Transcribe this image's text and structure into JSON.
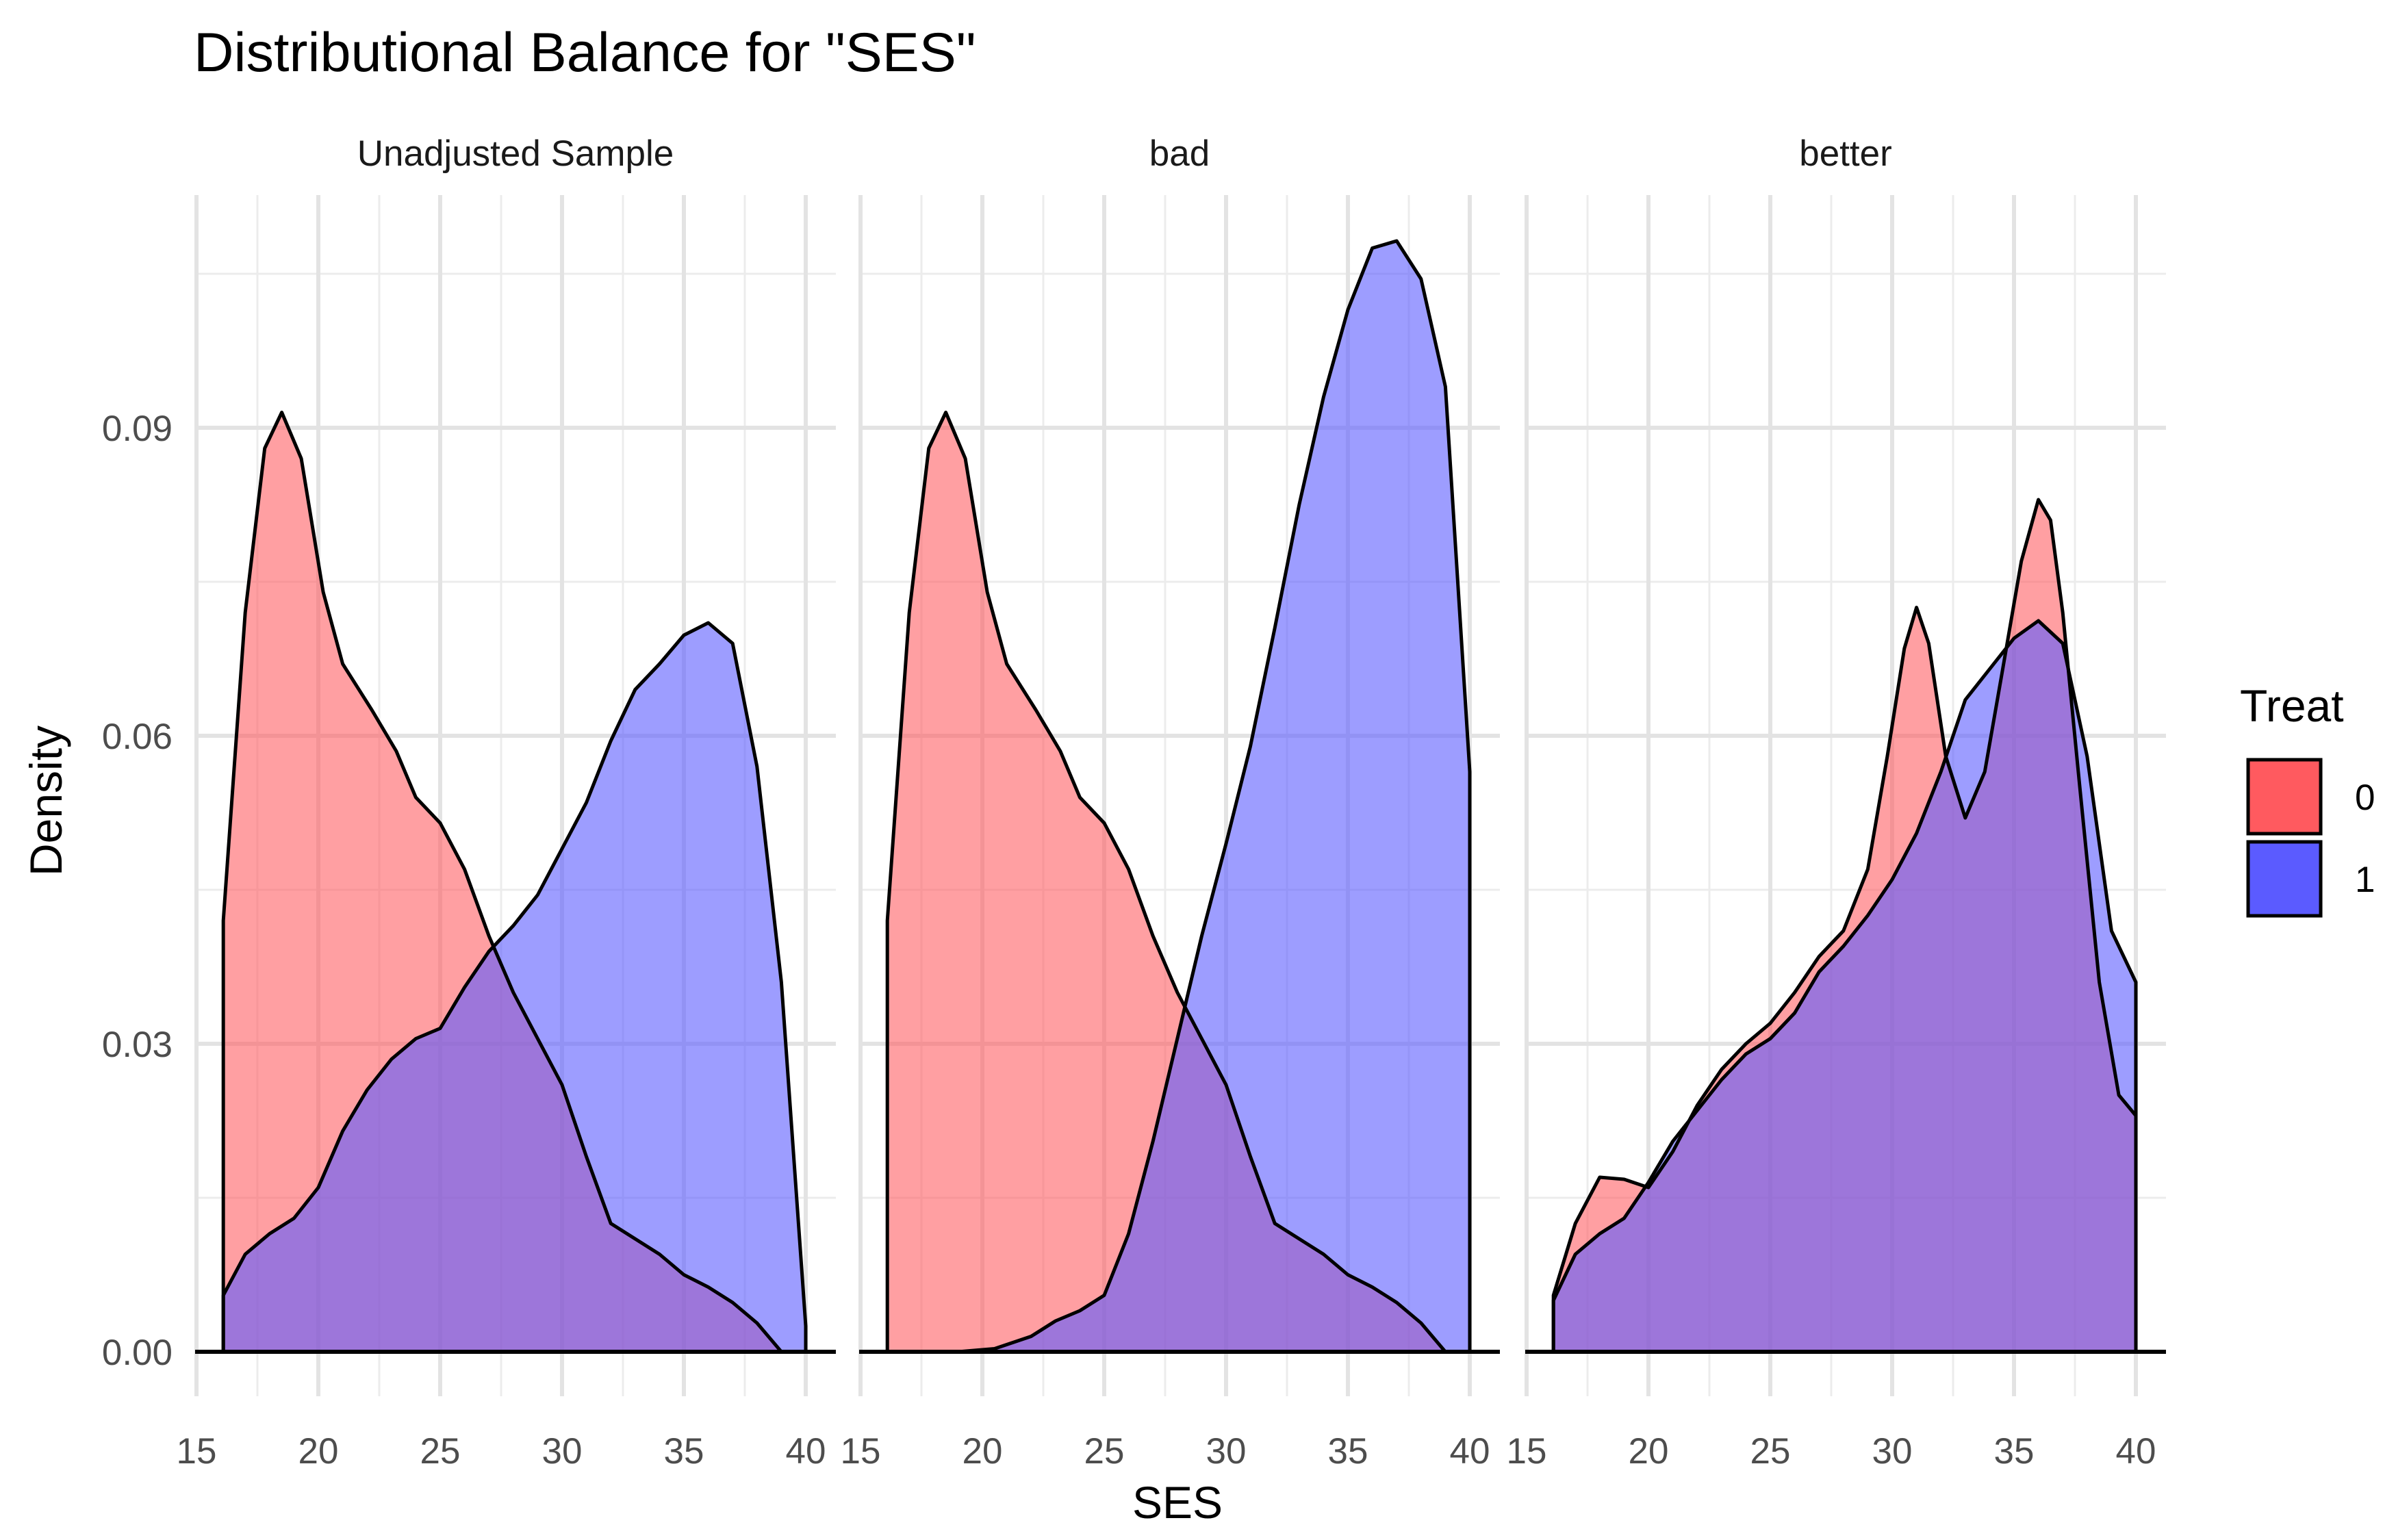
{
  "chart_data": {
    "type": "area",
    "title": "Distributional Balance for \"SES\"",
    "xlabel": "SES",
    "ylabel": "Density",
    "xlim": [
      15,
      40
    ],
    "ylim": [
      0,
      0.1096
    ],
    "x_ticks": [
      15,
      20,
      25,
      30,
      35,
      40
    ],
    "x_tick_labels": [
      "15",
      "20",
      "25",
      "30",
      "35",
      "40"
    ],
    "y_ticks": [
      0,
      0.03,
      0.06,
      0.09
    ],
    "y_tick_labels": [
      "0.00",
      "0.03",
      "0.06",
      "0.09"
    ],
    "grid": true,
    "legend": {
      "title": "Treat",
      "position": "right",
      "entries": [
        {
          "label": "0",
          "color": "#ff5a5f"
        },
        {
          "label": "1",
          "color": "#5b5bff"
        }
      ]
    },
    "colors": {
      "treat_0_fill": "#ff5a5f",
      "treat_1_fill": "#5b5bff",
      "treat_0_fill_opacity": 0.58,
      "treat_1_fill_opacity": 0.6
    },
    "panels": [
      {
        "strip": "Unadjusted Sample",
        "series": [
          {
            "name": "0",
            "x": [
              16.1,
              17.0,
              17.8,
              18.5,
              19.3,
              20.2,
              21.0,
              22.2,
              23.2,
              24.0,
              25.0,
              26.0,
              27.0,
              28.0,
              29.0,
              30.0,
              31.0,
              32.0,
              33.0,
              34.0,
              35.0,
              36.0,
              37.0,
              38.0,
              39.0,
              40.0
            ],
            "y": [
              0.042,
              0.072,
              0.088,
              0.0915,
              0.087,
              0.074,
              0.067,
              0.0625,
              0.0585,
              0.054,
              0.0515,
              0.047,
              0.0405,
              0.035,
              0.0305,
              0.026,
              0.019,
              0.0125,
              0.011,
              0.0095,
              0.0075,
              0.0063,
              0.0048,
              0.0028,
              0.0,
              0.0
            ]
          },
          {
            "name": "1",
            "x": [
              16.1,
              17.0,
              18.0,
              19.0,
              20.0,
              21.0,
              22.0,
              23.0,
              24.0,
              25.0,
              26.0,
              27.0,
              28.0,
              29.0,
              30.0,
              31.0,
              32.0,
              33.0,
              34.0,
              35.0,
              36.0,
              37.0,
              38.0,
              39.0,
              40.0
            ],
            "y": [
              0.0055,
              0.0095,
              0.0115,
              0.013,
              0.016,
              0.0215,
              0.0255,
              0.0285,
              0.0305,
              0.0315,
              0.0355,
              0.039,
              0.0415,
              0.0445,
              0.049,
              0.0535,
              0.0595,
              0.0645,
              0.067,
              0.0698,
              0.071,
              0.069,
              0.057,
              0.036,
              0.0025
            ]
          }
        ]
      },
      {
        "strip": "bad",
        "series": [
          {
            "name": "0",
            "x": [
              16.1,
              17.0,
              17.8,
              18.5,
              19.3,
              20.2,
              21.0,
              22.2,
              23.2,
              24.0,
              25.0,
              26.0,
              27.0,
              28.0,
              29.0,
              30.0,
              31.0,
              32.0,
              33.0,
              34.0,
              35.0,
              36.0,
              37.0,
              38.0,
              39.0,
              40.0
            ],
            "y": [
              0.042,
              0.072,
              0.088,
              0.0915,
              0.087,
              0.074,
              0.067,
              0.0625,
              0.0585,
              0.054,
              0.0515,
              0.047,
              0.0405,
              0.035,
              0.0305,
              0.026,
              0.019,
              0.0125,
              0.011,
              0.0095,
              0.0075,
              0.0063,
              0.0048,
              0.0028,
              0.0,
              0.0
            ]
          },
          {
            "name": "1",
            "x": [
              16.1,
              19.0,
              20.5,
              22.0,
              23.0,
              24.0,
              25.0,
              26.0,
              27.0,
              28.0,
              29.0,
              30.0,
              31.0,
              32.0,
              33.0,
              34.0,
              35.0,
              36.0,
              37.0,
              38.0,
              39.0,
              40.0
            ],
            "y": [
              0.0,
              0.0,
              0.0003,
              0.0015,
              0.003,
              0.004,
              0.0055,
              0.0115,
              0.0205,
              0.0305,
              0.0405,
              0.0495,
              0.059,
              0.0705,
              0.0825,
              0.093,
              0.1015,
              0.1075,
              0.1082,
              0.1045,
              0.094,
              0.0565
            ]
          }
        ]
      },
      {
        "strip": "better",
        "series": [
          {
            "name": "0",
            "x": [
              16.1,
              17.0,
              18.0,
              19.0,
              20.0,
              21.0,
              22.0,
              23.0,
              24.0,
              25.0,
              26.0,
              27.0,
              28.0,
              29.0,
              29.8,
              30.5,
              31.0,
              31.5,
              32.2,
              33.0,
              33.8,
              34.5,
              35.3,
              36.0,
              36.5,
              37.0,
              37.7,
              38.5,
              39.3,
              40.0
            ],
            "y": [
              0.0055,
              0.0125,
              0.017,
              0.0168,
              0.016,
              0.0195,
              0.024,
              0.0275,
              0.03,
              0.032,
              0.035,
              0.0385,
              0.041,
              0.047,
              0.058,
              0.0685,
              0.0725,
              0.069,
              0.058,
              0.052,
              0.0565,
              0.066,
              0.077,
              0.083,
              0.081,
              0.072,
              0.055,
              0.036,
              0.025,
              0.023
            ]
          },
          {
            "name": "1",
            "x": [
              16.1,
              17.0,
              18.0,
              19.0,
              20.0,
              21.0,
              22.0,
              23.0,
              24.0,
              25.0,
              26.0,
              27.0,
              28.0,
              29.0,
              30.0,
              31.0,
              32.0,
              33.0,
              34.0,
              35.0,
              36.0,
              37.0,
              38.0,
              39.0,
              40.0
            ],
            "y": [
              0.005,
              0.0095,
              0.0115,
              0.013,
              0.0165,
              0.0205,
              0.0235,
              0.0265,
              0.029,
              0.0305,
              0.033,
              0.037,
              0.0395,
              0.0425,
              0.046,
              0.0505,
              0.0565,
              0.0635,
              0.0665,
              0.0695,
              0.0712,
              0.069,
              0.058,
              0.041,
              0.036
            ]
          }
        ]
      }
    ]
  }
}
